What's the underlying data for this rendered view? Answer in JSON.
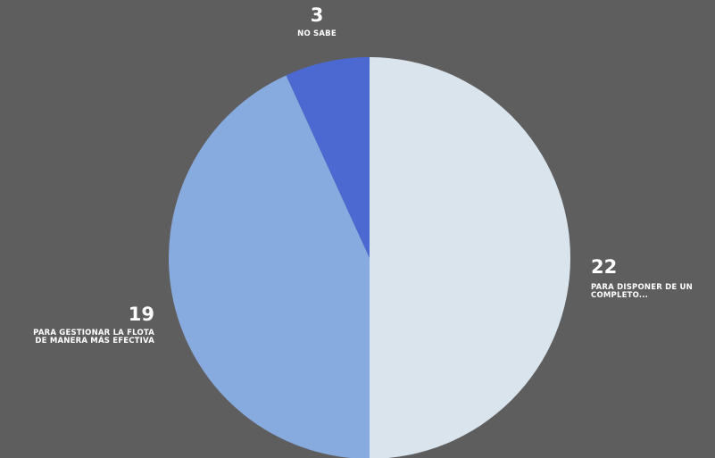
{
  "colors": {
    "background": "#5f5e5f",
    "label_text": "#ffffff"
  },
  "chart_data": {
    "type": "pie",
    "title": "",
    "start_angle_deg": 0,
    "direction": "clockwise",
    "slices": [
      {
        "value": 22,
        "value_label": "22",
        "label_lines": [
          "PARA DISPONER DE UN",
          "COMPLETO..."
        ],
        "color": "#dae4ec"
      },
      {
        "value": 19,
        "value_label": "19",
        "label_lines": [
          "PARA GESTIONAR LA FLOTA",
          "DE MANERA MÁS EFECTIVA"
        ],
        "color": "#87aadf"
      },
      {
        "value": 3,
        "value_label": "3",
        "label_lines": [
          "NO SABE"
        ],
        "color": "#4b69d1"
      }
    ]
  }
}
